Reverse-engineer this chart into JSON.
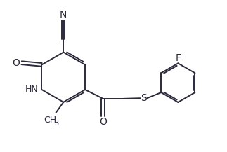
{
  "background_color": "#ffffff",
  "line_color": "#2a2a3a",
  "line_width": 1.4,
  "font_size": 9,
  "figsize": [
    3.23,
    2.17
  ],
  "dpi": 100,
  "xlim": [
    0,
    9.5
  ],
  "ylim": [
    0,
    6.4
  ]
}
